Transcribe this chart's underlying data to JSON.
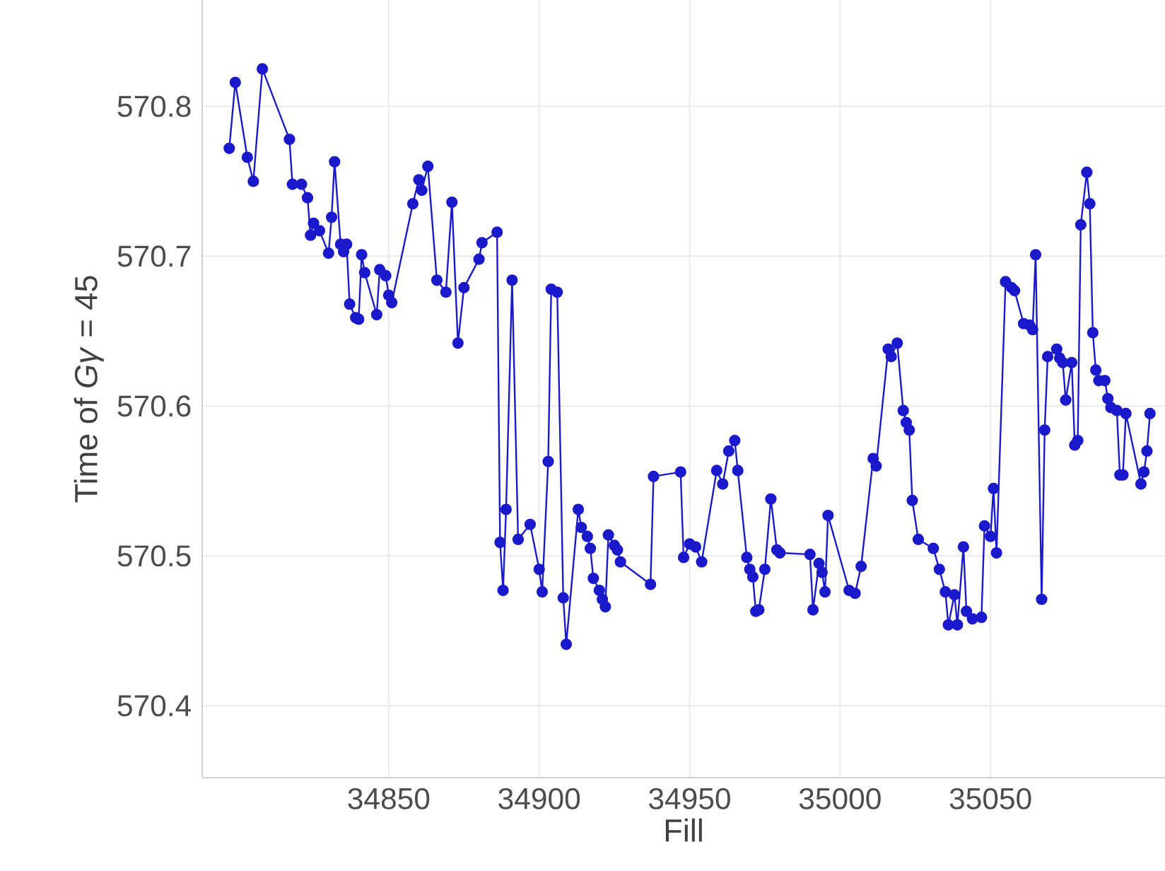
{
  "chart_data": {
    "type": "line",
    "xlabel": "Fill",
    "ylabel": "Time of *Gγ* = 45",
    "color": "#1a1acc",
    "marker": "circle",
    "grid": true,
    "xlim": [
      34788,
      35108
    ],
    "ylim": [
      570.352,
      570.871
    ],
    "xticks": [
      34850,
      34900,
      34950,
      35000,
      35050
    ],
    "yticks": [
      570.4,
      570.5,
      570.6,
      570.7,
      570.8
    ],
    "x": [
      34797,
      34799,
      34803,
      34805,
      34808,
      34817,
      34818,
      34821,
      34823,
      34824,
      34825,
      34827,
      34830,
      34831,
      34832,
      34834,
      34835,
      34836,
      34837,
      34839,
      34840,
      34841,
      34842,
      34846,
      34847,
      34849,
      34850,
      34851,
      34858,
      34860,
      34861,
      34863,
      34866,
      34869,
      34871,
      34873,
      34875,
      34880,
      34881,
      34886,
      34887,
      34888,
      34889,
      34891,
      34893,
      34897,
      34900,
      34901,
      34903,
      34904,
      34906,
      34908,
      34909,
      34913,
      34914,
      34916,
      34917,
      34918,
      34920,
      34921,
      34922,
      34923,
      34925,
      34926,
      34927,
      34937,
      34938,
      34947,
      34948,
      34950,
      34952,
      34954,
      34959,
      34961,
      34963,
      34965,
      34966,
      34969,
      34970,
      34971,
      34972,
      34973,
      34975,
      34977,
      34979,
      34980,
      34990,
      34991,
      34993,
      34994,
      34995,
      34996,
      35003,
      35005,
      35007,
      35011,
      35012,
      35016,
      35017,
      35019,
      35021,
      35022,
      35023,
      35024,
      35026,
      35031,
      35033,
      35035,
      35036,
      35038,
      35039,
      35041,
      35042,
      35044,
      35047,
      35048,
      35050,
      35051,
      35052,
      35055,
      35057,
      35058,
      35061,
      35063,
      35064,
      35065,
      35067,
      35068,
      35069,
      35072,
      35073,
      35074,
      35075,
      35077,
      35078,
      35079,
      35080,
      35082,
      35083,
      35084,
      35085,
      35086,
      35088,
      35089,
      35090,
      35092,
      35093,
      35094,
      35095,
      35100,
      35101,
      35102,
      35103
    ],
    "values": [
      570.772,
      570.816,
      570.766,
      570.75,
      570.825,
      570.778,
      570.748,
      570.748,
      570.739,
      570.714,
      570.722,
      570.717,
      570.702,
      570.726,
      570.763,
      570.708,
      570.703,
      570.708,
      570.668,
      570.659,
      570.658,
      570.701,
      570.689,
      570.661,
      570.691,
      570.687,
      570.674,
      570.669,
      570.735,
      570.751,
      570.744,
      570.76,
      570.684,
      570.676,
      570.736,
      570.642,
      570.679,
      570.698,
      570.709,
      570.716,
      570.509,
      570.477,
      570.531,
      570.684,
      570.511,
      570.521,
      570.491,
      570.476,
      570.563,
      570.678,
      570.676,
      570.472,
      570.441,
      570.531,
      570.519,
      570.513,
      570.505,
      570.485,
      570.477,
      570.471,
      570.466,
      570.514,
      570.507,
      570.504,
      570.496,
      570.481,
      570.553,
      570.556,
      570.499,
      570.508,
      570.506,
      570.496,
      570.557,
      570.548,
      570.57,
      570.577,
      570.557,
      570.499,
      570.491,
      570.486,
      570.463,
      570.464,
      570.491,
      570.538,
      570.504,
      570.502,
      570.501,
      570.464,
      570.495,
      570.489,
      570.476,
      570.527,
      570.477,
      570.475,
      570.493,
      570.565,
      570.56,
      570.638,
      570.633,
      570.642,
      570.597,
      570.589,
      570.584,
      570.537,
      570.511,
      570.505,
      570.491,
      570.476,
      570.454,
      570.474,
      570.454,
      570.506,
      570.463,
      570.458,
      570.459,
      570.52,
      570.513,
      570.545,
      570.502,
      570.683,
      570.679,
      570.677,
      570.655,
      570.654,
      570.651,
      570.701,
      570.471,
      570.584,
      570.633,
      570.638,
      570.632,
      570.629,
      570.604,
      570.629,
      570.574,
      570.577,
      570.721,
      570.756,
      570.735,
      570.649,
      570.624,
      570.617,
      570.617,
      570.605,
      570.599,
      570.597,
      570.554,
      570.554,
      570.595,
      570.548,
      570.556,
      570.57,
      570.595
    ]
  }
}
